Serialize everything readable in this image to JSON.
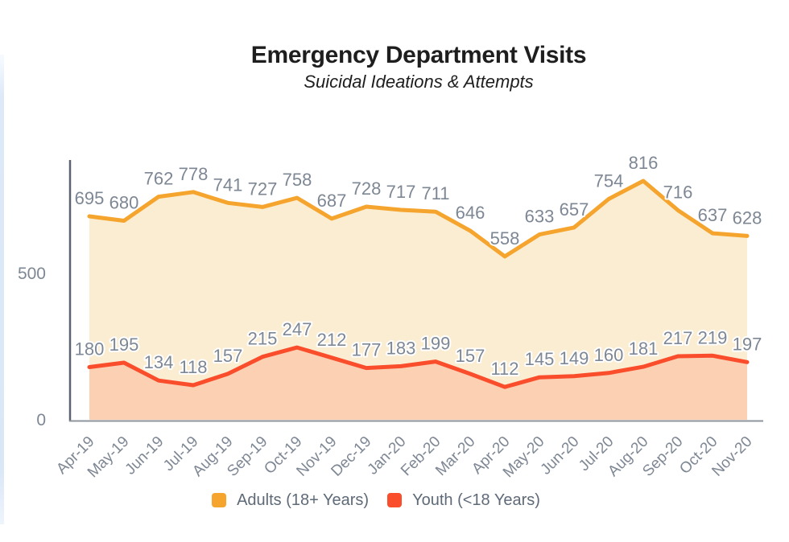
{
  "header": {
    "title": "Emergency Department Visits",
    "subtitle": "Suicidal Ideations & Attempts"
  },
  "chart_data": {
    "type": "area",
    "title": "Emergency Department Visits",
    "subtitle": "Suicidal Ideations & Attempts",
    "categories": [
      "Apr-19",
      "May-19",
      "Jun-19",
      "Jul-19",
      "Aug-19",
      "Sep-19",
      "Oct-19",
      "Nov-19",
      "Dec-19",
      "Jan-20",
      "Feb-20",
      "Mar-20",
      "Apr-20",
      "May-20",
      "Jun-20",
      "Jul-20",
      "Aug-20",
      "Sep-20",
      "Oct-20",
      "Nov-20"
    ],
    "series": [
      {
        "name": "Adults (18+ Years)",
        "line_color": "#F5A42D",
        "fill_color": "#FBEDD2",
        "values": [
          695,
          680,
          762,
          778,
          741,
          727,
          758,
          687,
          728,
          717,
          711,
          646,
          558,
          633,
          657,
          754,
          816,
          716,
          637,
          628
        ]
      },
      {
        "name": "Youth (<18 Years)",
        "line_color": "#F94D2B",
        "fill_color": "#FBD0B3",
        "values": [
          180,
          195,
          134,
          118,
          157,
          215,
          247,
          212,
          177,
          183,
          199,
          157,
          112,
          145,
          149,
          160,
          181,
          217,
          219,
          197
        ]
      }
    ],
    "xlabel": "",
    "ylabel": "",
    "ylim": [
      0,
      860
    ],
    "yticks": [
      0,
      500
    ],
    "grid": false,
    "data_labels": true,
    "x_tick_rotation": -45,
    "legend_position": "bottom"
  },
  "legend": {
    "items": [
      {
        "label": "Adults (18+ Years)",
        "color": "#F5A42D"
      },
      {
        "label": "Youth (<18 Years)",
        "color": "#F94D2B"
      }
    ]
  },
  "colors": {
    "label_text": "#7E8794",
    "axis_line": "#5A636F",
    "baseline": "#8E959D",
    "title_text": "#1E1E1E",
    "legend_text": "#5E6A78",
    "label_halo": "#FFFFFF"
  }
}
